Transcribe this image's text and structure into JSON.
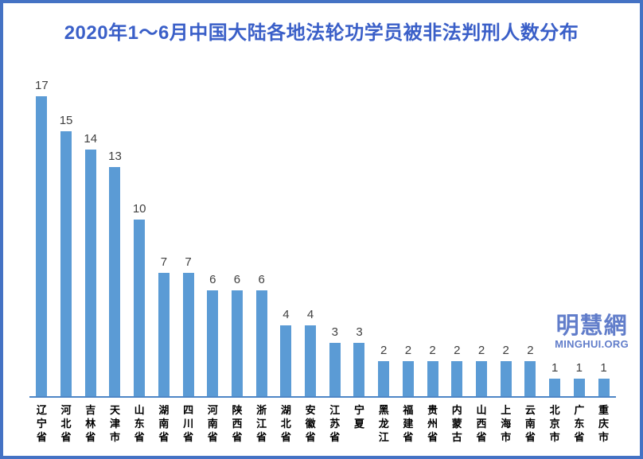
{
  "chart_data": {
    "type": "bar",
    "title": "2020年1～6月中国大陆各地法轮功学员被非法判刑人数分布",
    "categories": [
      "辽宁省",
      "河北省",
      "吉林省",
      "天津市",
      "山东省",
      "湖南省",
      "四川省",
      "河南省",
      "陕西省",
      "浙江省",
      "湖北省",
      "安徽省",
      "江苏省",
      "宁夏",
      "黑龙江",
      "福建省",
      "贵州省",
      "内蒙古",
      "山西省",
      "上海市",
      "云南省",
      "北京市",
      "广东省",
      "重庆市"
    ],
    "values": [
      17,
      15,
      14,
      13,
      10,
      7,
      7,
      6,
      6,
      6,
      4,
      4,
      3,
      3,
      2,
      2,
      2,
      2,
      2,
      2,
      2,
      1,
      1,
      1
    ],
    "xlabel": "",
    "ylabel": "",
    "ylim": [
      0,
      18
    ],
    "grid": false,
    "legend_position": "none",
    "data_labels": true,
    "category_label_orientation": "vertical"
  },
  "logo": {
    "chinese": "明慧網",
    "english": "MINGHUI.ORG"
  },
  "colors": {
    "bar": "#5b9bd5",
    "axis_line": "#4e86c6",
    "title": "#3a5fc8",
    "value_label": "#404040",
    "category_label": "#000000",
    "frame_border": "#4472c4",
    "logo": "#5472c6"
  }
}
